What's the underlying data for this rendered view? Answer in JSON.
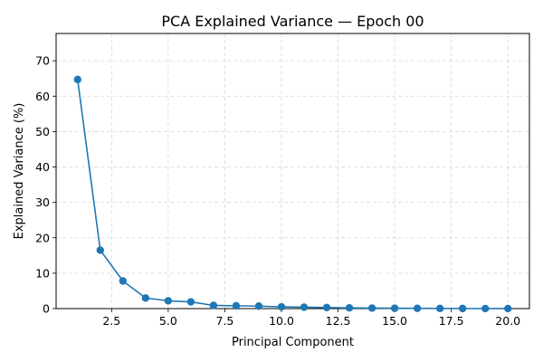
{
  "chart_data": {
    "type": "line",
    "title": "PCA Explained Variance — Epoch 00",
    "xlabel": "Principal Component",
    "ylabel": "Explained Variance (%)",
    "xlim": [
      0.05,
      20.95
    ],
    "ylim": [
      0,
      77.7
    ],
    "xticks": [
      2.5,
      5.0,
      7.5,
      10.0,
      12.5,
      15.0,
      17.5,
      20.0
    ],
    "xtick_labels": [
      "2.5",
      "5.0",
      "7.5",
      "10.0",
      "12.5",
      "15.0",
      "17.5",
      "20.0"
    ],
    "yticks": [
      0,
      10,
      20,
      30,
      40,
      50,
      60,
      70
    ],
    "ytick_labels": [
      "0",
      "10",
      "20",
      "30",
      "40",
      "50",
      "60",
      "70"
    ],
    "grid": true,
    "series": [
      {
        "color": "#1f77b4",
        "marker": "circle",
        "x": [
          1,
          2,
          3,
          4,
          5,
          6,
          7,
          8,
          9,
          10,
          11,
          12,
          13,
          14,
          15,
          16,
          17,
          18,
          19,
          20
        ],
        "values": [
          64.7,
          16.5,
          7.8,
          3.0,
          2.2,
          1.9,
          0.9,
          0.8,
          0.7,
          0.5,
          0.4,
          0.3,
          0.2,
          0.15,
          0.1,
          0.08,
          0.05,
          0.03,
          0.02,
          0.01
        ]
      }
    ]
  }
}
